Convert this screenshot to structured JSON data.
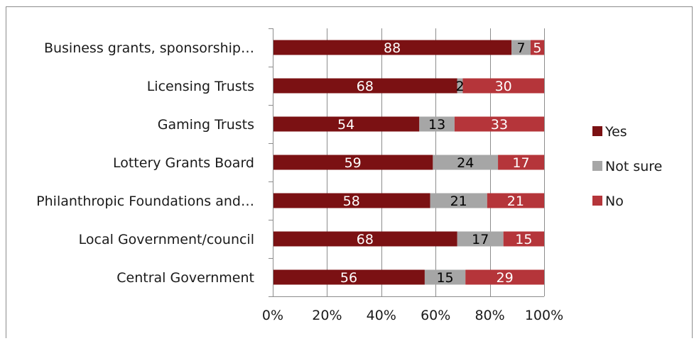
{
  "chart_data": {
    "type": "bar",
    "orientation": "horizontal",
    "stacked": "percent",
    "categories": [
      "Business grants, sponsorship…",
      "Licensing Trusts",
      "Gaming Trusts",
      "Lottery Grants  Board",
      "Philanthropic Foundations and…",
      "Local Government/council",
      "Central Government"
    ],
    "series": [
      {
        "name": "Yes",
        "values": [
          88,
          68,
          54,
          59,
          58,
          68,
          56
        ],
        "color": "#7b1113",
        "label_color": "#ffffff"
      },
      {
        "name": "Not sure",
        "values": [
          7,
          2,
          13,
          24,
          21,
          17,
          15
        ],
        "color": "#a6a6a6",
        "label_color": "#000000"
      },
      {
        "name": "No",
        "values": [
          5,
          30,
          33,
          17,
          21,
          15,
          29
        ],
        "color": "#b5353a",
        "label_color": "#ffffff"
      }
    ],
    "xaxis": {
      "ticks": [
        0,
        20,
        40,
        60,
        80,
        100
      ],
      "tick_labels": [
        "0%",
        "20%",
        "40%",
        "60%",
        "80%",
        "100%"
      ],
      "range": [
        0,
        100
      ]
    },
    "grid": "vertical",
    "legend": "right",
    "title": "",
    "xlabel": "",
    "ylabel": ""
  }
}
